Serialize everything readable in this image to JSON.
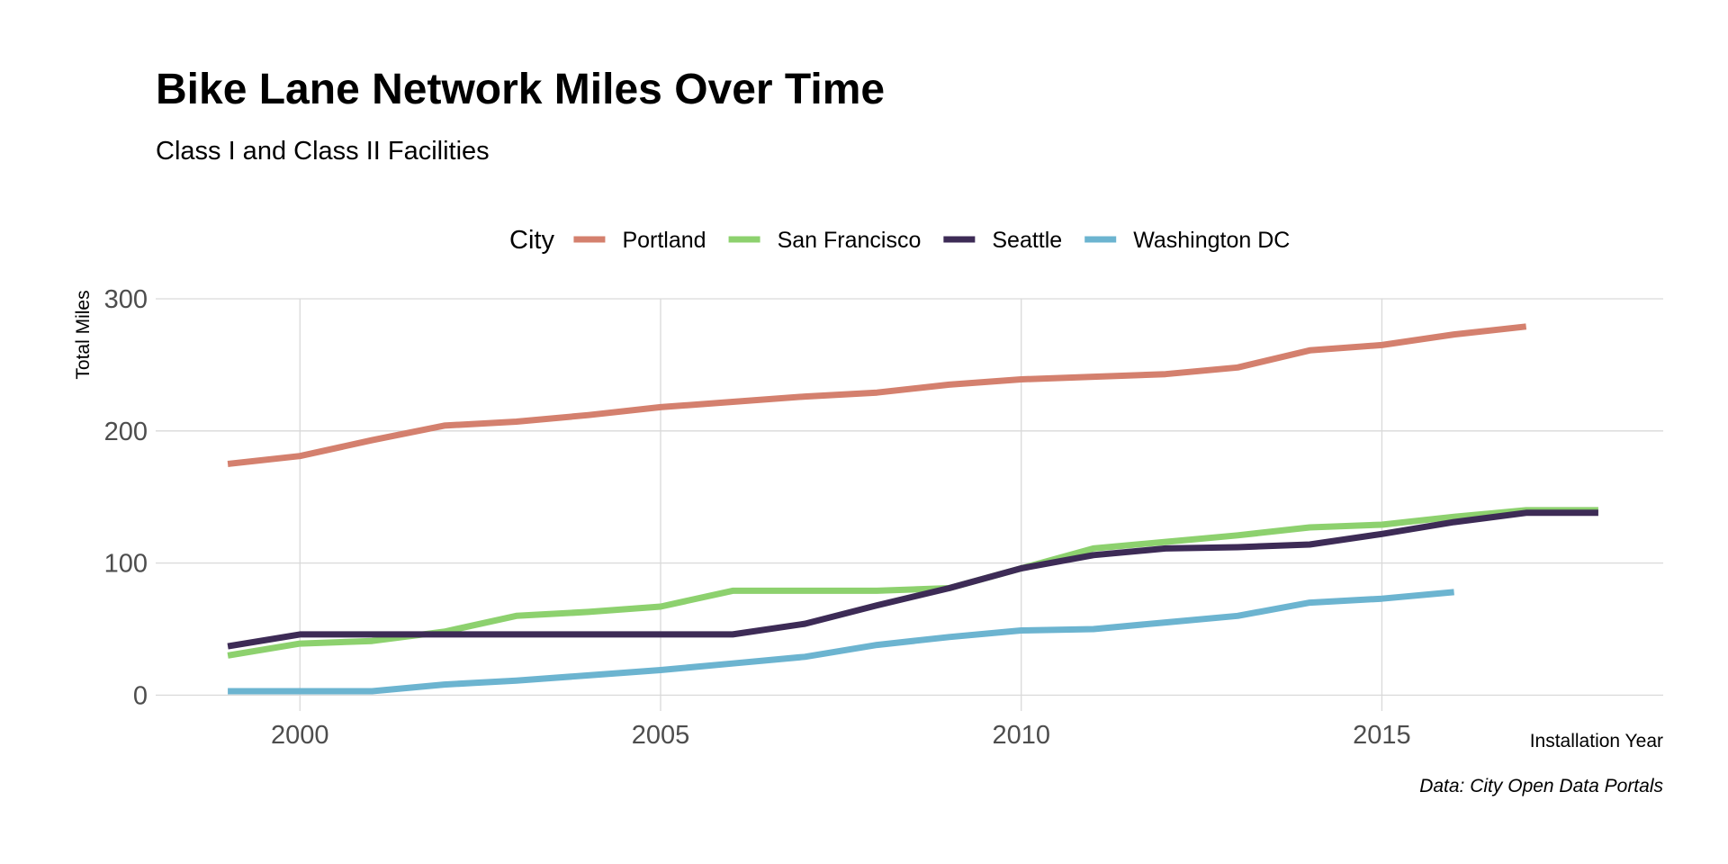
{
  "chart_data": {
    "type": "line",
    "title": "Bike Lane Network Miles Over Time",
    "subtitle": "Class I and Class II Facilities",
    "xlabel": "Installation Year",
    "ylabel": "Total Miles",
    "caption": "Data: City Open Data Portals",
    "legend_title": "City",
    "legend_position": "top",
    "grid": true,
    "xlim": [
      1998,
      2018.9
    ],
    "ylim": [
      -12,
      300
    ],
    "x_ticks": [
      2000,
      2005,
      2010,
      2015
    ],
    "y_ticks": [
      0,
      100,
      200,
      300
    ],
    "series": [
      {
        "name": "Portland",
        "color": "#D4806E",
        "x": [
          1999,
          2000,
          2001,
          2002,
          2003,
          2004,
          2005,
          2006,
          2007,
          2008,
          2009,
          2010,
          2011,
          2012,
          2013,
          2014,
          2015,
          2016,
          2017
        ],
        "values": [
          175,
          181,
          193,
          204,
          207,
          212,
          218,
          222,
          226,
          229,
          235,
          239,
          241,
          243,
          248,
          261,
          265,
          273,
          279
        ]
      },
      {
        "name": "San Francisco",
        "color": "#8DD16E",
        "x": [
          1999,
          2000,
          2001,
          2002,
          2003,
          2004,
          2005,
          2006,
          2007,
          2008,
          2009,
          2010,
          2011,
          2012,
          2013,
          2014,
          2015,
          2016,
          2017,
          2018
        ],
        "values": [
          30,
          39,
          41,
          48,
          60,
          63,
          67,
          79,
          79,
          79,
          81,
          96,
          111,
          116,
          121,
          127,
          129,
          135,
          140,
          140
        ]
      },
      {
        "name": "Seattle",
        "color": "#3D2B56",
        "x": [
          1999,
          2000,
          2001,
          2002,
          2003,
          2004,
          2005,
          2006,
          2007,
          2008,
          2009,
          2010,
          2011,
          2012,
          2013,
          2014,
          2015,
          2016,
          2017,
          2018
        ],
        "values": [
          37,
          46,
          46,
          46,
          46,
          46,
          46,
          46,
          54,
          68,
          81,
          96,
          106,
          111,
          112,
          114,
          122,
          131,
          138,
          138
        ]
      },
      {
        "name": "Washington DC",
        "color": "#6CB4D0",
        "x": [
          1999,
          2000,
          2001,
          2002,
          2003,
          2004,
          2005,
          2006,
          2007,
          2008,
          2009,
          2010,
          2011,
          2012,
          2013,
          2014,
          2015,
          2016
        ],
        "values": [
          3,
          3,
          3,
          8,
          11,
          15,
          19,
          24,
          29,
          38,
          44,
          49,
          50,
          55,
          60,
          70,
          73,
          78
        ]
      }
    ]
  }
}
